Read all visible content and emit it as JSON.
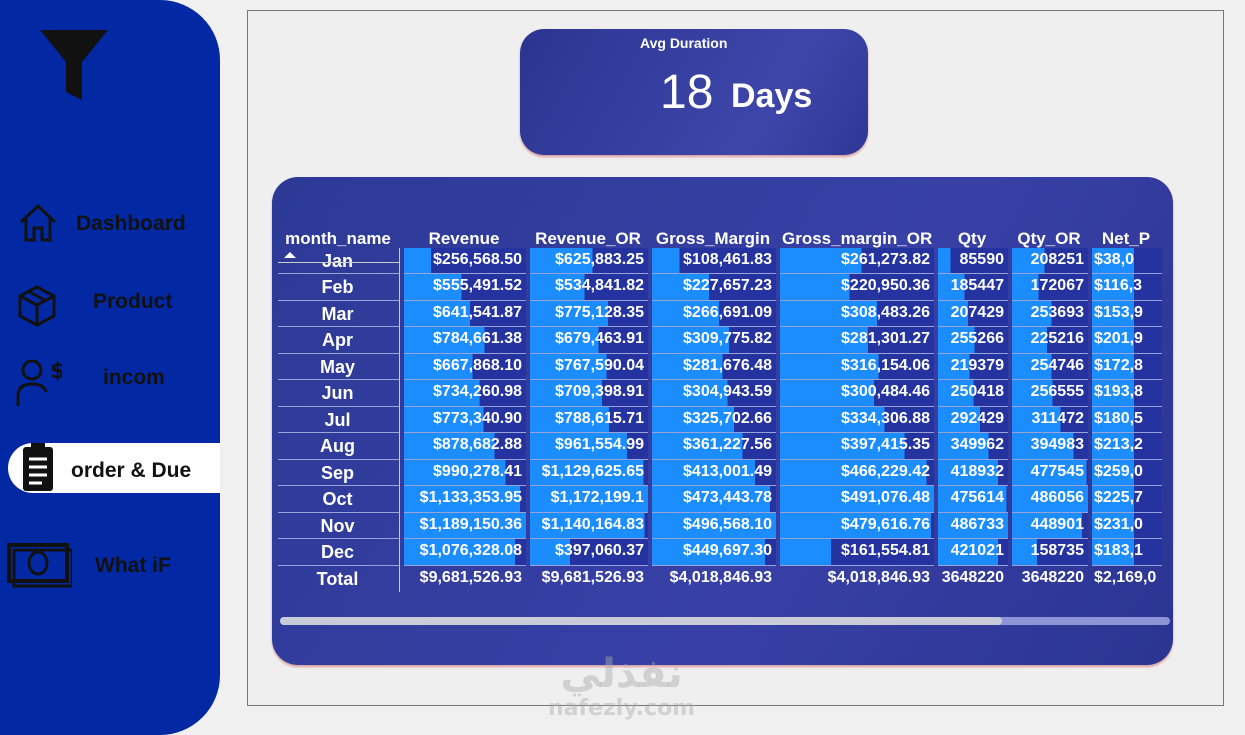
{
  "sidebar": {
    "items": [
      "Dashboard",
      "Product",
      "incom",
      "order & Due",
      "What iF"
    ]
  },
  "card": {
    "label": "Avg Duration",
    "value": "18",
    "unit": "Days"
  },
  "table": {
    "columns": [
      "month_name",
      "Revenue",
      "Revenue_OR",
      "Gross_Margin",
      "Gross_margin_OR",
      "Qty",
      "Qty_OR",
      "Net_P"
    ],
    "rows": [
      [
        "Jan",
        "$256,568.50",
        "$625,883.25",
        "$108,461.83",
        "$261,273.82",
        "85590",
        "208251",
        "$38,0"
      ],
      [
        "Feb",
        "$555,491.52",
        "$534,841.82",
        "$227,657.23",
        "$220,950.36",
        "185447",
        "172067",
        "$116,3"
      ],
      [
        "Mar",
        "$641,541.87",
        "$775,128.35",
        "$266,691.09",
        "$308,483.26",
        "207429",
        "253693",
        "$153,9"
      ],
      [
        "Apr",
        "$784,661.38",
        "$679,463.91",
        "$309,775.82",
        "$281,301.27",
        "255266",
        "225216",
        "$201,9"
      ],
      [
        "May",
        "$667,868.10",
        "$767,590.04",
        "$281,676.48",
        "$316,154.06",
        "219379",
        "254746",
        "$172,8"
      ],
      [
        "Jun",
        "$734,260.98",
        "$709,398.91",
        "$304,943.59",
        "$300,484.46",
        "250418",
        "256555",
        "$193,8"
      ],
      [
        "Jul",
        "$773,340.90",
        "$788,615.71",
        "$325,702.66",
        "$334,306.88",
        "292429",
        "311472",
        "$180,5"
      ],
      [
        "Aug",
        "$878,682.88",
        "$961,554.99",
        "$361,227.56",
        "$397,415.35",
        "349962",
        "394983",
        "$213,2"
      ],
      [
        "Sep",
        "$990,278.41",
        "$1,129,625.65",
        "$413,001.49",
        "$466,229.42",
        "418932",
        "477545",
        "$259,0"
      ],
      [
        "Oct",
        "$1,133,353.95",
        "$1,172,199.1",
        "$473,443.78",
        "$491,076.48",
        "475614",
        "486056",
        "$225,7"
      ],
      [
        "Nov",
        "$1,189,150.36",
        "$1,140,164.83",
        "$496,568.10",
        "$479,616.76",
        "486733",
        "448901",
        "$231,0"
      ],
      [
        "Dec",
        "$1,076,328.08",
        "$397,060.37",
        "$449,697.30",
        "$161,554.81",
        "421021",
        "158735",
        "$183,1"
      ]
    ],
    "total": [
      "Total",
      "$9,681,526.93",
      "$9,681,526.93",
      "$4,018,846.93",
      "$4,018,846.93",
      "3648220",
      "3648220",
      "$2,169,0"
    ]
  },
  "watermark": [
    "نفذلي",
    "nafezly.com"
  ]
}
